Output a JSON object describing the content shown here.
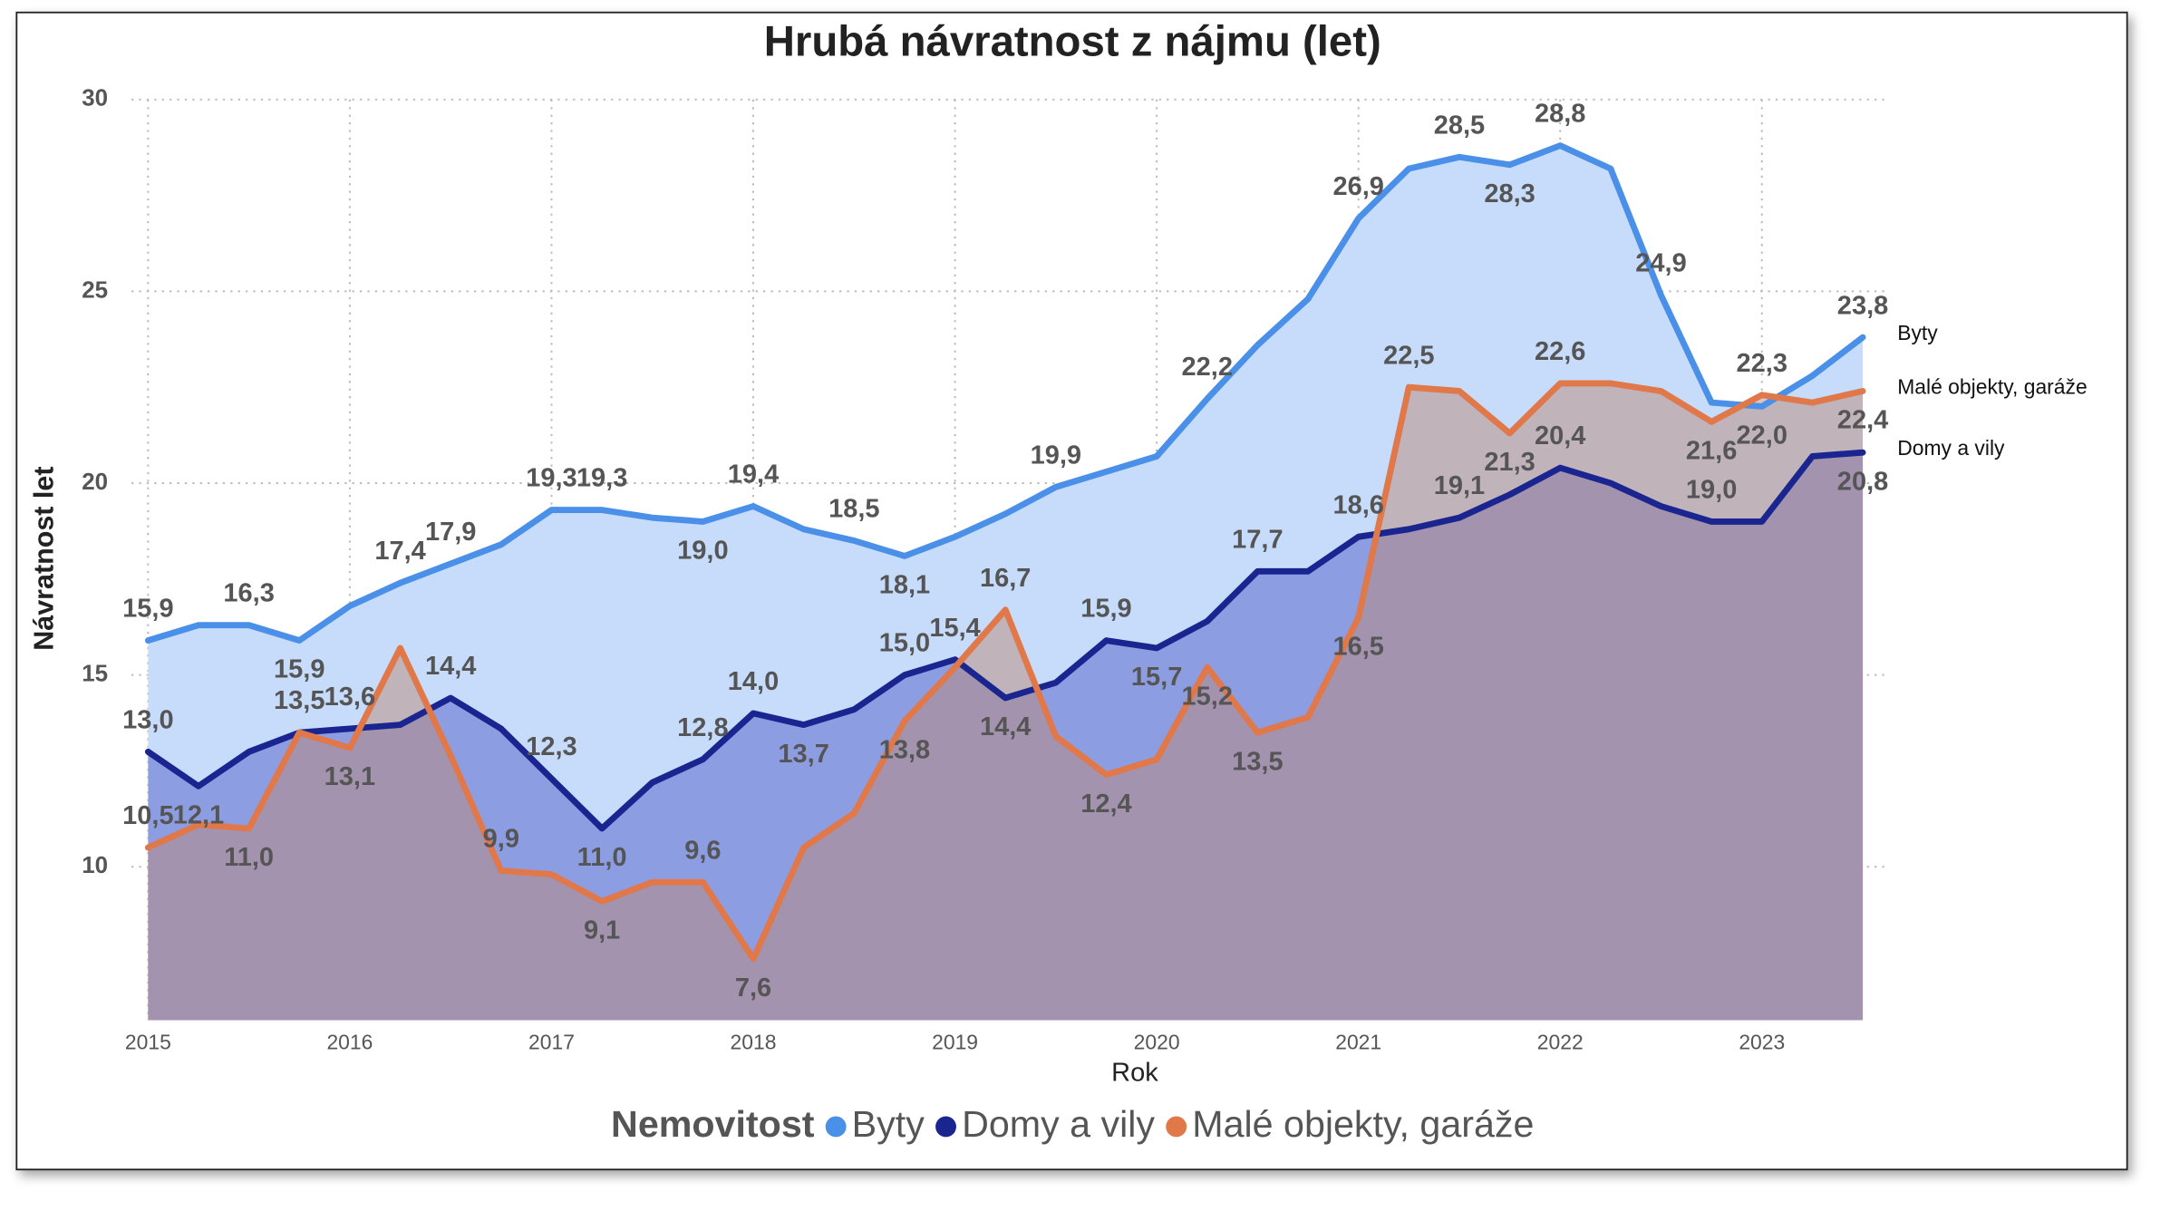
{
  "chart_data": {
    "type": "area",
    "title": "Hrubá návratnost z nájmu (let)",
    "x_label": "Rok",
    "y_label": "Návratnost let",
    "legend_title": "Nemovitost",
    "x": [
      2015,
      2015.25,
      2015.5,
      2015.75,
      2016,
      2016.25,
      2016.5,
      2016.75,
      2017,
      2017.25,
      2017.5,
      2017.75,
      2018,
      2018.25,
      2018.5,
      2018.75,
      2019,
      2019.25,
      2019.5,
      2019.75,
      2020,
      2020.25,
      2020.5,
      2020.75,
      2021,
      2021.25,
      2021.5,
      2021.75,
      2022,
      2022.25,
      2022.5,
      2022.75,
      2023,
      2023.25,
      2023.5
    ],
    "xlim": [
      2015,
      2023.5
    ],
    "xticks": [
      2015,
      2016,
      2017,
      2018,
      2019,
      2020,
      2021,
      2022,
      2023
    ],
    "ylim": [
      6,
      30
    ],
    "yticks": [
      10,
      15,
      20,
      25,
      30
    ],
    "grid": true,
    "series": [
      {
        "name": "Byty",
        "color": "#4a8fe8",
        "fill": "#c6dcfa",
        "values": [
          15.9,
          16.3,
          16.3,
          15.9,
          16.8,
          17.4,
          17.9,
          18.4,
          19.3,
          19.3,
          19.1,
          19.0,
          19.4,
          18.8,
          18.5,
          18.1,
          18.6,
          19.2,
          19.9,
          20.3,
          20.7,
          22.2,
          23.6,
          24.8,
          26.9,
          28.2,
          28.5,
          28.3,
          28.8,
          28.2,
          24.9,
          22.1,
          22.0,
          22.8,
          23.8
        ],
        "value_labels": [
          "15,9",
          null,
          "16,3",
          "15,9",
          null,
          "17,4",
          "17,9",
          null,
          "19,3",
          "19,3",
          null,
          "19,0",
          "19,4",
          null,
          "18,5",
          "18,1",
          null,
          null,
          "19,9",
          null,
          null,
          "22,2",
          null,
          null,
          "26,9",
          null,
          "28,5",
          "28,3",
          "28,8",
          null,
          "24,9",
          null,
          "22,0",
          null,
          "23,8"
        ]
      },
      {
        "name": "Domy a vily",
        "color": "#1a2590",
        "fill": "#8d9de2",
        "values": [
          13.0,
          12.1,
          13.0,
          13.5,
          13.6,
          13.7,
          14.4,
          13.6,
          12.3,
          11.0,
          12.2,
          12.8,
          14.0,
          13.7,
          14.1,
          15.0,
          15.4,
          14.4,
          14.8,
          15.9,
          15.7,
          16.4,
          17.7,
          17.7,
          18.6,
          18.8,
          19.1,
          19.7,
          20.4,
          20.0,
          19.4,
          19.0,
          19.0,
          20.7,
          20.8
        ],
        "value_labels": [
          "13,0",
          "12,1",
          null,
          null,
          "13,6",
          null,
          "14,4",
          null,
          "12,3",
          "11,0",
          null,
          "12,8",
          "14,0",
          "13,7",
          null,
          "15,0",
          "15,4",
          "14,4",
          null,
          "15,9",
          "15,7",
          null,
          "17,7",
          null,
          "18,6",
          null,
          "19,1",
          null,
          "20,4",
          null,
          null,
          "19,0",
          null,
          null,
          "20,8"
        ]
      },
      {
        "name": "Malé objekty, garáže",
        "color": "#e0784a",
        "fill": "#b9897a",
        "values": [
          10.5,
          11.1,
          11.0,
          13.5,
          13.1,
          15.7,
          12.9,
          9.9,
          9.8,
          9.1,
          9.6,
          9.6,
          7.6,
          10.5,
          11.4,
          13.8,
          15.2,
          16.7,
          13.4,
          12.4,
          12.8,
          15.2,
          13.5,
          13.9,
          16.5,
          22.5,
          22.4,
          21.3,
          22.6,
          22.6,
          22.4,
          21.6,
          22.3,
          22.1,
          22.4
        ],
        "value_labels": [
          "10,5",
          null,
          "11,0",
          "13,5",
          "13,1",
          null,
          null,
          "9,9",
          null,
          "9,1",
          null,
          "9,6",
          "7,6",
          null,
          null,
          "13,8",
          null,
          "16,7",
          null,
          "12,4",
          null,
          "15,2",
          "13,5",
          null,
          "16,5",
          "22,5",
          null,
          "21,3",
          "22,6",
          null,
          null,
          "21,6",
          "22,3",
          null,
          "22,4"
        ]
      }
    ]
  }
}
